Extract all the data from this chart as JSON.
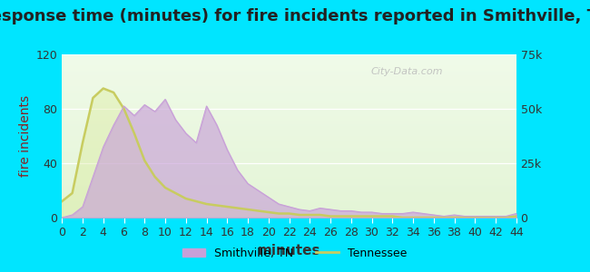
{
  "title": "Response time (minutes) for fire incidents reported in Smithville, TN",
  "xlabel": "minutes",
  "ylabel_left": "fire incidents",
  "background_outer": "#00e5ff",
  "background_inner_top": "#e8f5e0",
  "background_inner_bottom": "#f8fff8",
  "x_ticks": [
    0,
    2,
    4,
    6,
    8,
    10,
    12,
    14,
    16,
    18,
    20,
    22,
    24,
    26,
    28,
    30,
    32,
    34,
    36,
    38,
    40,
    42,
    44
  ],
  "ylim_left": [
    0,
    120
  ],
  "ylim_right": [
    0,
    75000
  ],
  "yticks_left": [
    0,
    40,
    80,
    120
  ],
  "yticks_right": [
    0,
    25000,
    50000,
    75000
  ],
  "ytick_labels_right": [
    "0",
    "25k",
    "50k",
    "75k"
  ],
  "smithville_x": [
    0,
    1,
    2,
    3,
    4,
    5,
    6,
    7,
    8,
    9,
    10,
    11,
    12,
    13,
    14,
    15,
    16,
    17,
    18,
    19,
    20,
    21,
    22,
    23,
    24,
    25,
    26,
    27,
    28,
    29,
    30,
    31,
    32,
    33,
    34,
    35,
    36,
    37,
    38,
    39,
    40,
    41,
    42,
    43,
    44
  ],
  "smithville_y": [
    0,
    2,
    8,
    30,
    52,
    68,
    82,
    75,
    83,
    78,
    87,
    72,
    62,
    55,
    82,
    68,
    50,
    35,
    25,
    20,
    15,
    10,
    8,
    6,
    5,
    7,
    6,
    5,
    5,
    4,
    4,
    3,
    3,
    3,
    4,
    3,
    2,
    1,
    2,
    1,
    1,
    1,
    1,
    1,
    3
  ],
  "tennessee_x": [
    0,
    1,
    2,
    3,
    4,
    5,
    6,
    7,
    8,
    9,
    10,
    11,
    12,
    13,
    14,
    15,
    16,
    17,
    18,
    19,
    20,
    21,
    22,
    23,
    24,
    25,
    26,
    27,
    28,
    29,
    30,
    31,
    32,
    33,
    34,
    35,
    36,
    37,
    38,
    39,
    40,
    41,
    42,
    43,
    44
  ],
  "tennessee_y": [
    12,
    18,
    55,
    88,
    95,
    92,
    80,
    62,
    42,
    30,
    22,
    18,
    14,
    12,
    10,
    9,
    8,
    7,
    6,
    5,
    4,
    3,
    3,
    2,
    2,
    2,
    1,
    1,
    1,
    1,
    1,
    1,
    1,
    0,
    0,
    0,
    0,
    0,
    0,
    0,
    0,
    0,
    0,
    0,
    1
  ],
  "smithville_fill_color": "#c8a0d8",
  "smithville_line_color": "#c8a0d8",
  "tennessee_line_color": "#c8cc60",
  "tennessee_fill_color": "#d8e890",
  "legend_smithville_label": "Smithville, TN",
  "legend_tennessee_label": "Tennessee",
  "watermark_text": "City-Data.com",
  "title_fontsize": 13,
  "axis_fontsize": 10,
  "tick_fontsize": 9
}
